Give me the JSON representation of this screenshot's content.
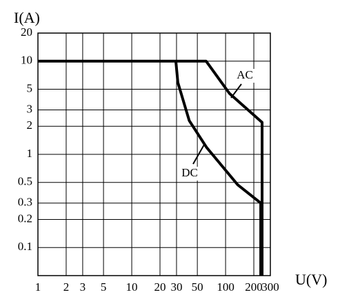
{
  "chart_data": {
    "type": "line",
    "x_label": "U(V)",
    "y_label": "I(A)",
    "xlog": true,
    "ylog": true,
    "grid": true,
    "xlim": [
      1,
      300
    ],
    "ylim": [
      0.05,
      20
    ],
    "xticks": [
      1,
      2,
      3,
      5,
      10,
      20,
      30,
      50,
      100,
      200,
      300
    ],
    "yticks": [
      20,
      10,
      5,
      3,
      2,
      1,
      0.5,
      0.3,
      0.2,
      0.1
    ],
    "series": [
      {
        "name": "AC",
        "color": "#000000",
        "x": [
          1,
          62,
          110,
          245,
          245
        ],
        "values": [
          10,
          10,
          4.5,
          2.2,
          0.05
        ]
      },
      {
        "name": "DC",
        "color": "#000000",
        "x": [
          29.5,
          31,
          41,
          63,
          135,
          237,
          237
        ],
        "values": [
          10,
          5.9,
          2.3,
          1.18,
          0.47,
          0.3,
          0.05
        ]
      }
    ]
  }
}
